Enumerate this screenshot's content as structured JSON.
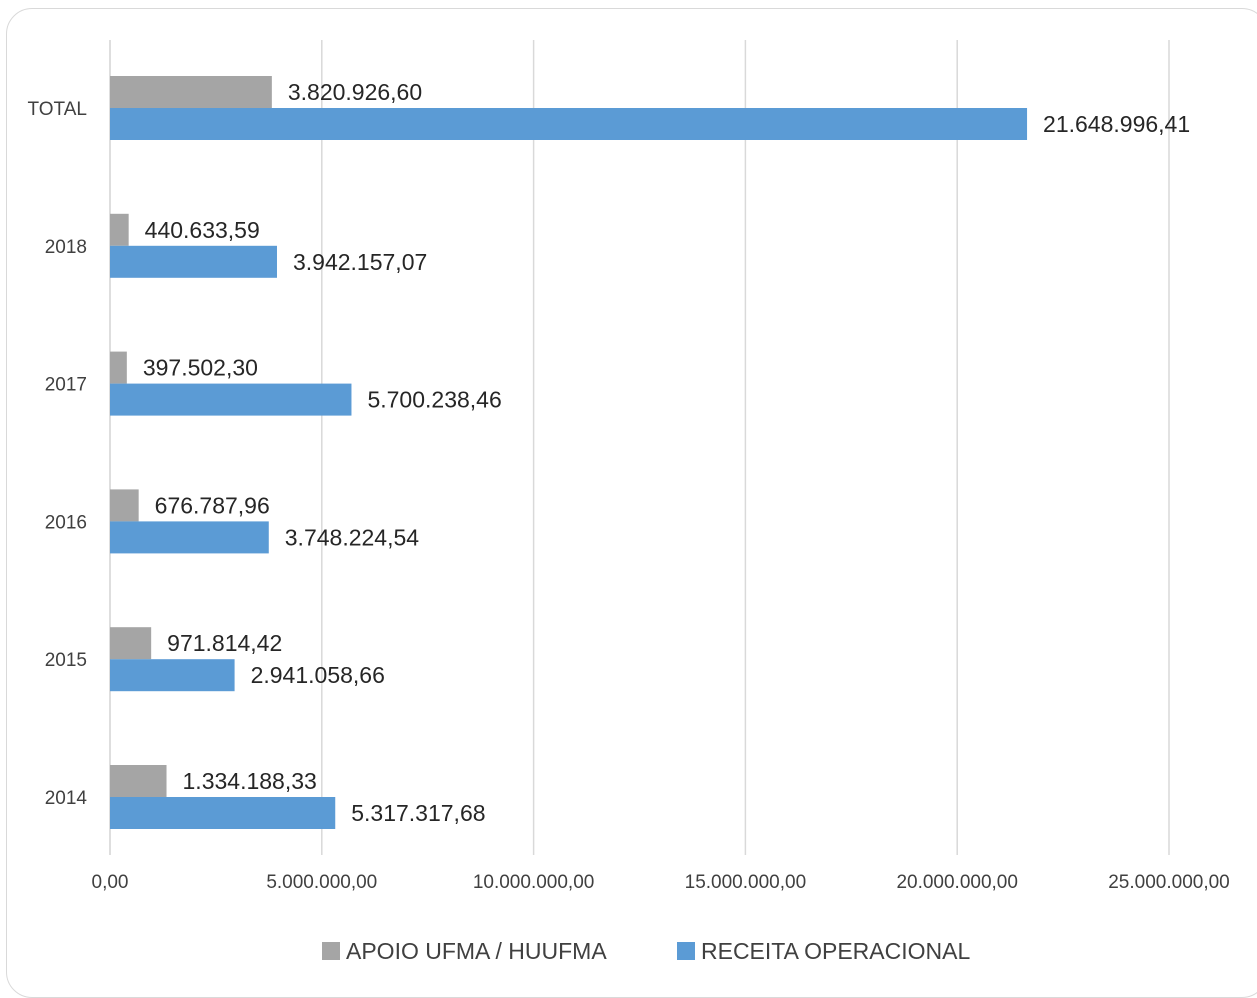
{
  "chart_data": {
    "type": "bar",
    "orientation": "horizontal",
    "categories": [
      "TOTAL",
      "2018",
      "2017",
      "2016",
      "2015",
      "2014"
    ],
    "series": [
      {
        "name": "APOIO UFMA / HUUFMA",
        "color": "#a5a5a5",
        "values": [
          3820926.6,
          440633.59,
          397502.3,
          676787.96,
          971814.42,
          1334188.33
        ],
        "labels": [
          "3.820.926,60",
          "440.633,59",
          "397.502,30",
          "676.787,96",
          "971.814,42",
          "1.334.188,33"
        ]
      },
      {
        "name": "RECEITA OPERACIONAL",
        "color": "#5b9bd5",
        "values": [
          21648996.41,
          3942157.07,
          5700238.46,
          3748224.54,
          2941058.66,
          5317317.68
        ],
        "labels": [
          "21.648.996,41",
          "3.942.157,07",
          "5.700.238,46",
          "3.748.224,54",
          "2.941.058,66",
          "5.317.317,68"
        ]
      }
    ],
    "xlim": [
      0,
      25000000
    ],
    "x_ticks": [
      0,
      5000000,
      10000000,
      15000000,
      20000000,
      25000000
    ],
    "x_tick_labels": [
      "0,00",
      "5.000.000,00",
      "10.000.000,00",
      "15.000.000,00",
      "20.000.000,00",
      "25.000.000,00"
    ],
    "grid": true,
    "legend_position": "bottom",
    "title": "",
    "xlabel": "",
    "ylabel": ""
  }
}
